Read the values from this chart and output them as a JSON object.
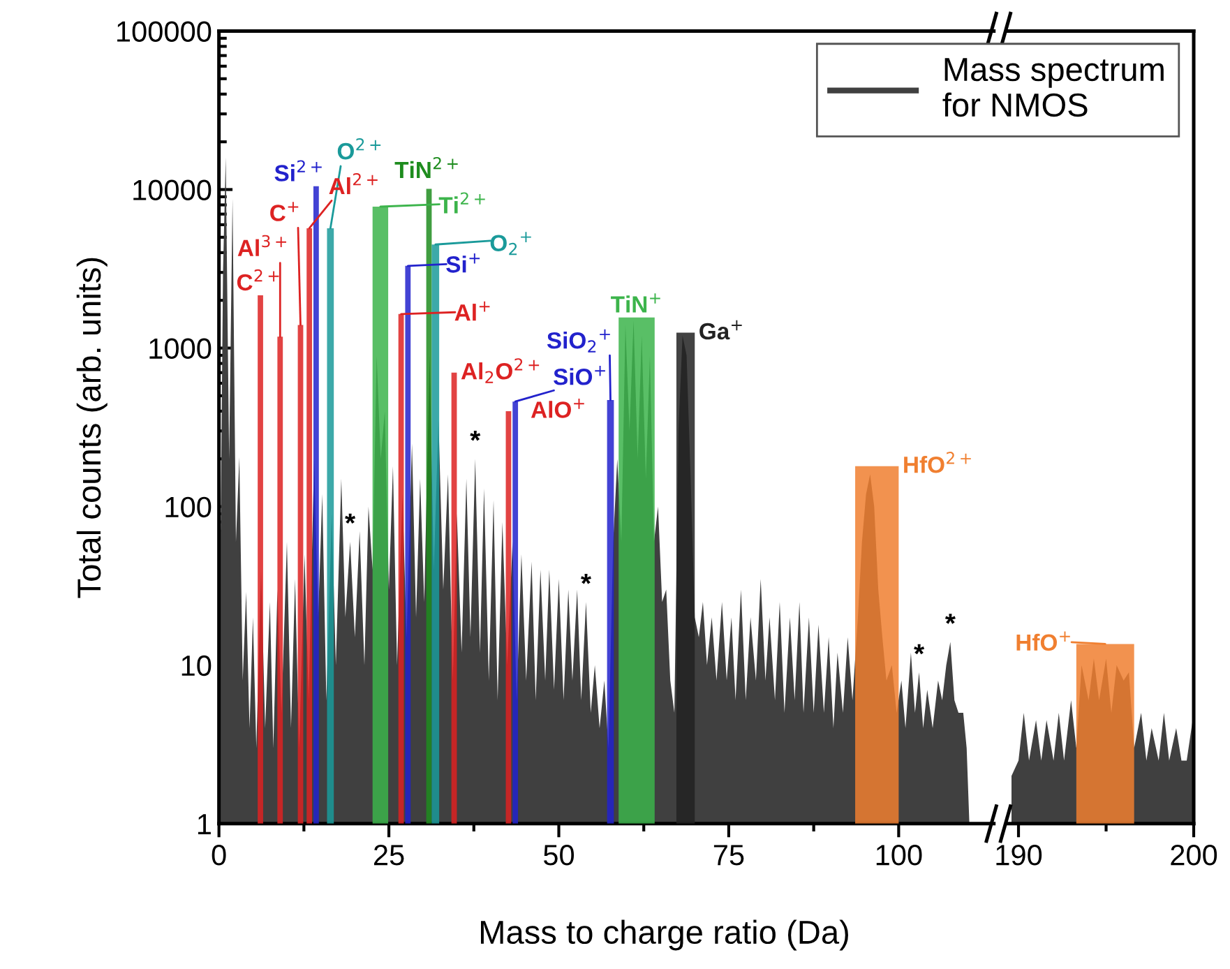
{
  "chart_data": [
    {
      "type": "area",
      "xlabel": "Mass to charge ratio (Da)",
      "ylabel": "Total counts (arb. units)",
      "log": "y",
      "xlim": [
        0,
        114
      ],
      "xticks": [
        0,
        25,
        50,
        75,
        100
      ],
      "ylim": [
        1,
        100000
      ],
      "yticks": [
        1,
        10,
        100,
        1000,
        10000,
        100000
      ],
      "legend": "top right",
      "grid": false,
      "series": [
        {
          "name": "Mass spectrum\nfor NMOS",
          "color": "#404040",
          "x": [
            0,
            0.6,
            1,
            1.5,
            2,
            2.5,
            3,
            3.5,
            4,
            4.5,
            5,
            5.5,
            6.2,
            6.8,
            7.5,
            8,
            8.6,
            9.2,
            10,
            10.6,
            11.2,
            11.8,
            12.6,
            13.2,
            14,
            14.6,
            15.2,
            15.8,
            16.6,
            17.2,
            18,
            18.6,
            19.3,
            20,
            20.7,
            21.4,
            22,
            22.6,
            23.2,
            23.8,
            24.4,
            25,
            25.6,
            26.2,
            27,
            27.6,
            28.4,
            29,
            29.6,
            30.2,
            31,
            31.6,
            32.3,
            33,
            33.7,
            34.4,
            35,
            35.7,
            36.4,
            37,
            37.7,
            38.4,
            39,
            39.7,
            40.4,
            41,
            41.7,
            42.4,
            43.2,
            43.8,
            44.5,
            45.2,
            46,
            46.6,
            47.3,
            48,
            48.6,
            49.3,
            50,
            50.7,
            51.4,
            52,
            52.7,
            53.3,
            54,
            54.7,
            55.3,
            56,
            56.7,
            57.3,
            58,
            58.6,
            59.2,
            59.8,
            60.4,
            61,
            61.6,
            62.2,
            62.8,
            63.4,
            64,
            64.6,
            65.2,
            65.8,
            66.4,
            67,
            67.6,
            68.2,
            68.8,
            69.4,
            70,
            70.6,
            71.2,
            71.8,
            72.5,
            73.2,
            74,
            74.7,
            75.4,
            76,
            76.8,
            77.5,
            78.2,
            79,
            79.7,
            80.4,
            81,
            81.8,
            82.5,
            83.2,
            84,
            84.7,
            85.4,
            86,
            86.8,
            87.5,
            88.2,
            89,
            89.7,
            90.4,
            91,
            91.8,
            92.5,
            93.2,
            94,
            94.6,
            95.2,
            95.8,
            96.4,
            97,
            97.6,
            98.2,
            99,
            99.7,
            100.4,
            101,
            101.8,
            102.4,
            103,
            103.6,
            104.2,
            105,
            105.8,
            106.4,
            107,
            107.6,
            108.2,
            108.8,
            109.5,
            110,
            110.4
          ],
          "values": [
            5,
            3000,
            16000,
            200,
            8800,
            60,
            205,
            8,
            29,
            4,
            20,
            3,
            40,
            4,
            25,
            3,
            30,
            5,
            60,
            4,
            35,
            3,
            50,
            6,
            200,
            20,
            120,
            6,
            90,
            10,
            150,
            20,
            60,
            15,
            70,
            10,
            100,
            40,
            900,
            200,
            400,
            30,
            180,
            10,
            120,
            15,
            250,
            20,
            150,
            25,
            900,
            40,
            350,
            30,
            160,
            8,
            90,
            12,
            150,
            15,
            200,
            12,
            130,
            8,
            110,
            6,
            80,
            10,
            60,
            6,
            50,
            8,
            45,
            6,
            40,
            8,
            40,
            7,
            35,
            6,
            30,
            8,
            30,
            6,
            25,
            5,
            10,
            4,
            8,
            3,
            60,
            200,
            60,
            1400,
            300,
            1500,
            200,
            1200,
            150,
            900,
            60,
            100,
            25,
            30,
            8,
            5,
            300,
            1200,
            900,
            150,
            20,
            15,
            25,
            10,
            20,
            8,
            25,
            8,
            20,
            6,
            30,
            6,
            20,
            8,
            35,
            8,
            20,
            6,
            25,
            5,
            20,
            6,
            25,
            5,
            20,
            5,
            18,
            5,
            15,
            4,
            12,
            5,
            15,
            6,
            20,
            60,
            120,
            160,
            100,
            30,
            15,
            8,
            10,
            5,
            8,
            4,
            12,
            5,
            9,
            4,
            7,
            4,
            8,
            6,
            10,
            14,
            6,
            5,
            5,
            3,
            1
          ]
        },
        {
          "name": "C$^{2+}$",
          "color": "#dd2222",
          "x": [
            5.7,
            6.5
          ],
          "values": [
            2150,
            2150
          ]
        },
        {
          "name": "Al$^{3+}$",
          "color": "#dd2222",
          "x": [
            8.6,
            9.4
          ],
          "values": [
            1180,
            1180
          ]
        },
        {
          "name": "C$^{+}$",
          "color": "#dd2222",
          "x": [
            11.6,
            12.4
          ],
          "values": [
            1400,
            1400
          ]
        },
        {
          "name": "Al$^{2+}$",
          "color": "#dd2222",
          "x": [
            12.9,
            13.7
          ],
          "values": [
            5700,
            5700
          ]
        },
        {
          "name": "Si$^{2+}$",
          "color": "#2222cc",
          "x": [
            13.9,
            14.7
          ],
          "values": [
            10500,
            10500
          ]
        },
        {
          "name": "O$^{2+}$",
          "color": "#1a9a9a",
          "x": [
            15.9,
            16.9
          ],
          "values": [
            5700,
            5700
          ]
        },
        {
          "name": "Ti$^{2+}$",
          "color": "#3cb44b",
          "x": [
            22.6,
            24.9
          ],
          "values": [
            7800,
            7800
          ]
        },
        {
          "name": "Al$^{+}$",
          "color": "#dd2222",
          "x": [
            26.4,
            27.2
          ],
          "values": [
            1640,
            1640
          ]
        },
        {
          "name": "Si$^{+}$",
          "color": "#2222cc",
          "x": [
            27.4,
            28.2
          ],
          "values": [
            3300,
            3300
          ]
        },
        {
          "name": "TiN$^{2+}$",
          "color": "#1e8c1e",
          "x": [
            30.5,
            31.3
          ],
          "values": [
            10100,
            10100
          ]
        },
        {
          "name": "O$_{2}$$^{+}$",
          "color": "#1a9a9a",
          "x": [
            31.3,
            32.4
          ],
          "values": [
            4500,
            4500
          ]
        },
        {
          "name": "Al$_{2}$O$^{2+}$",
          "color": "#dd2222",
          "x": [
            34.2,
            35
          ],
          "values": [
            700,
            700
          ]
        },
        {
          "name": "AlO$^{+}$",
          "color": "#dd2222",
          "x": [
            42.2,
            43
          ],
          "values": [
            400,
            400
          ]
        },
        {
          "name": "SiO$^{+}$",
          "color": "#2222cc",
          "x": [
            43.2,
            44
          ],
          "values": [
            460,
            460
          ]
        },
        {
          "name": "SiO$_{2}$$^{+}$",
          "color": "#2222cc",
          "x": [
            57.1,
            58.1
          ],
          "values": [
            470,
            470
          ]
        },
        {
          "name": "TiN$^{+}$",
          "color": "#3cb44b",
          "x": [
            58.8,
            64.1
          ],
          "values": [
            1560,
            1560
          ]
        },
        {
          "name": "Ga$^{+}$",
          "color": "#222222",
          "x": [
            67.3,
            70
          ],
          "values": [
            1250,
            1250
          ]
        },
        {
          "name": "HfO$^{2+}$",
          "color": "#f07f30",
          "x": [
            93.6,
            100
          ],
          "values": [
            180,
            180
          ]
        }
      ],
      "annotations": [
        {
          "text": "*",
          "x": 19.3,
          "y": 60
        },
        {
          "text": "*",
          "x": 37.7,
          "y": 200
        },
        {
          "text": "*",
          "x": 54,
          "y": 25
        },
        {
          "text": "*",
          "x": 103,
          "y": 9
        },
        {
          "text": "*",
          "x": 107.6,
          "y": 14
        }
      ]
    },
    {
      "type": "area",
      "log": "y",
      "xlim": [
        189.4,
        200
      ],
      "xticks": [
        190,
        200
      ],
      "ylim": [
        1,
        100000
      ],
      "tick_labels": "x",
      "series": [
        {
          "color": "#404040",
          "x": [
            189.6,
            190,
            190.3,
            190.6,
            191,
            191.3,
            191.6,
            192,
            192.3,
            192.6,
            193,
            193.3,
            193.6,
            194,
            194.3,
            194.6,
            195,
            195.3,
            195.6,
            196,
            196.3,
            196.6,
            197,
            197.3,
            197.6,
            198,
            198.3,
            198.6,
            199,
            199.3,
            199.6,
            200
          ],
          "values": [
            2,
            2.5,
            5,
            2.5,
            4.5,
            2.5,
            4.5,
            2.5,
            5,
            2.5,
            6,
            3,
            10,
            6,
            11,
            6,
            11,
            5,
            10,
            8,
            9,
            3,
            5,
            2.5,
            4,
            2.5,
            5,
            2.5,
            4,
            2.5,
            2.5,
            5
          ]
        },
        {
          "name": "HfO$^{+}$",
          "color": "#f07f30",
          "x": [
            193.3,
            196.6
          ],
          "values": [
            13.6,
            13.6
          ]
        }
      ]
    }
  ]
}
